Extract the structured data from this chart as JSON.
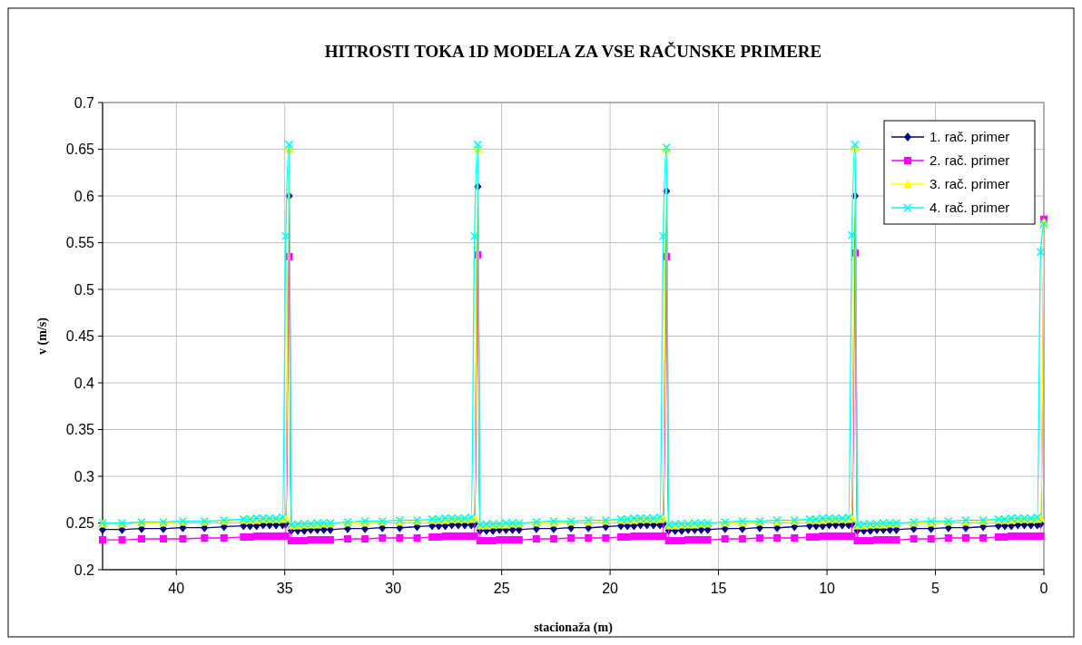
{
  "chart_data": {
    "type": "line",
    "title": "HITROSTI TOKA 1D MODELA ZA VSE RAČUNSKE PRIMERE",
    "xlabel": "stacionaža (m)",
    "ylabel": "v (m/s)",
    "x": [
      43.4,
      42.5,
      41.6,
      40.6,
      39.7,
      38.7,
      37.8,
      36.9,
      36.6,
      36.3,
      36.0,
      35.7,
      35.4,
      35.1,
      34.95,
      34.8,
      34.7,
      34.4,
      34.1,
      33.8,
      33.5,
      33.2,
      32.9,
      32.1,
      31.3,
      30.5,
      29.7,
      28.9,
      28.2,
      27.9,
      27.6,
      27.3,
      27.0,
      26.7,
      26.4,
      26.25,
      26.1,
      26.0,
      25.7,
      25.4,
      25.1,
      24.8,
      24.5,
      24.2,
      23.4,
      22.6,
      21.8,
      21.0,
      20.2,
      19.5,
      19.2,
      18.9,
      18.6,
      18.3,
      18.0,
      17.7,
      17.55,
      17.4,
      17.3,
      17.0,
      16.7,
      16.4,
      16.1,
      15.8,
      15.5,
      14.7,
      13.9,
      13.1,
      12.3,
      11.5,
      10.8,
      10.5,
      10.2,
      9.9,
      9.6,
      9.3,
      9.0,
      8.85,
      8.7,
      8.6,
      8.3,
      8.0,
      7.7,
      7.4,
      7.1,
      6.8,
      6.0,
      5.2,
      4.4,
      3.6,
      2.8,
      2.1,
      1.8,
      1.5,
      1.2,
      0.9,
      0.6,
      0.3,
      0.15,
      0
    ],
    "series": [
      {
        "name": "1. rač. primer",
        "color": "#000080",
        "marker": "diamond",
        "values": [
          0.243,
          0.243,
          0.244,
          0.244,
          0.245,
          0.245,
          0.246,
          0.247,
          0.247,
          0.247,
          0.248,
          0.248,
          0.248,
          0.248,
          0.249,
          0.6,
          0.242,
          0.242,
          0.242,
          0.243,
          0.243,
          0.243,
          0.243,
          0.244,
          0.244,
          0.245,
          0.245,
          0.246,
          0.247,
          0.247,
          0.247,
          0.248,
          0.248,
          0.248,
          0.248,
          0.249,
          0.61,
          0.242,
          0.242,
          0.242,
          0.243,
          0.243,
          0.243,
          0.243,
          0.244,
          0.244,
          0.245,
          0.245,
          0.246,
          0.247,
          0.247,
          0.247,
          0.248,
          0.248,
          0.248,
          0.248,
          0.249,
          0.605,
          0.242,
          0.242,
          0.242,
          0.243,
          0.243,
          0.243,
          0.243,
          0.244,
          0.244,
          0.245,
          0.245,
          0.246,
          0.247,
          0.247,
          0.247,
          0.248,
          0.248,
          0.248,
          0.248,
          0.249,
          0.6,
          0.242,
          0.242,
          0.242,
          0.243,
          0.243,
          0.243,
          0.243,
          0.244,
          0.244,
          0.245,
          0.245,
          0.246,
          0.247,
          0.247,
          0.247,
          0.248,
          0.248,
          0.248,
          0.248,
          0.249,
          null
        ]
      },
      {
        "name": "2. rač. primer",
        "color": "#ff00ff",
        "marker": "square",
        "values": [
          0.232,
          0.232,
          0.233,
          0.233,
          0.233,
          0.234,
          0.234,
          0.235,
          0.235,
          0.236,
          0.236,
          0.236,
          0.236,
          0.236,
          0.236,
          0.535,
          0.231,
          0.231,
          0.231,
          0.232,
          0.232,
          0.232,
          0.232,
          0.233,
          0.233,
          0.234,
          0.234,
          0.234,
          0.235,
          0.235,
          0.236,
          0.236,
          0.236,
          0.236,
          0.236,
          0.236,
          0.537,
          0.231,
          0.231,
          0.231,
          0.232,
          0.232,
          0.232,
          0.232,
          0.233,
          0.233,
          0.234,
          0.234,
          0.234,
          0.235,
          0.235,
          0.236,
          0.236,
          0.236,
          0.236,
          0.236,
          0.236,
          0.535,
          0.231,
          0.231,
          0.231,
          0.232,
          0.232,
          0.232,
          0.232,
          0.233,
          0.233,
          0.234,
          0.234,
          0.234,
          0.235,
          0.235,
          0.236,
          0.236,
          0.236,
          0.236,
          0.236,
          0.236,
          0.539,
          0.231,
          0.231,
          0.231,
          0.232,
          0.232,
          0.232,
          0.232,
          0.233,
          0.233,
          0.234,
          0.234,
          0.234,
          0.235,
          0.235,
          0.236,
          0.236,
          0.236,
          0.236,
          0.236,
          0.236,
          0.575
        ]
      },
      {
        "name": "3. rač. primer",
        "color": "#ffff00",
        "marker": "triangle",
        "values": [
          0.249,
          0.249,
          0.25,
          0.25,
          0.251,
          0.251,
          0.252,
          0.253,
          0.253,
          0.253,
          0.254,
          0.254,
          0.254,
          0.254,
          0.255,
          0.65,
          0.247,
          0.247,
          0.248,
          0.248,
          0.248,
          0.249,
          0.249,
          0.25,
          0.25,
          0.251,
          0.251,
          0.252,
          0.253,
          0.253,
          0.253,
          0.254,
          0.254,
          0.254,
          0.254,
          0.255,
          0.65,
          0.247,
          0.247,
          0.248,
          0.248,
          0.248,
          0.249,
          0.249,
          0.25,
          0.25,
          0.251,
          0.251,
          0.252,
          0.253,
          0.253,
          0.253,
          0.254,
          0.254,
          0.254,
          0.254,
          0.255,
          0.65,
          0.247,
          0.247,
          0.248,
          0.248,
          0.248,
          0.249,
          0.249,
          0.25,
          0.25,
          0.251,
          0.251,
          0.252,
          0.253,
          0.253,
          0.253,
          0.254,
          0.254,
          0.254,
          0.254,
          0.255,
          0.652,
          0.247,
          0.247,
          0.248,
          0.248,
          0.248,
          0.249,
          0.249,
          0.25,
          0.25,
          0.251,
          0.251,
          0.252,
          0.253,
          0.253,
          0.253,
          0.254,
          0.254,
          0.254,
          0.254,
          0.255,
          0.572
        ]
      },
      {
        "name": "4. rač. primer",
        "color": "#00ffff",
        "marker": "cross",
        "values": [
          0.25,
          0.25,
          0.251,
          0.251,
          0.252,
          0.252,
          0.253,
          0.254,
          0.254,
          0.255,
          0.255,
          0.255,
          0.255,
          0.256,
          0.557,
          0.655,
          0.248,
          0.249,
          0.249,
          0.249,
          0.25,
          0.25,
          0.25,
          0.251,
          0.252,
          0.252,
          0.253,
          0.253,
          0.254,
          0.254,
          0.255,
          0.255,
          0.255,
          0.255,
          0.256,
          0.557,
          0.655,
          0.248,
          0.249,
          0.249,
          0.249,
          0.25,
          0.25,
          0.25,
          0.251,
          0.252,
          0.252,
          0.253,
          0.253,
          0.254,
          0.254,
          0.255,
          0.255,
          0.255,
          0.255,
          0.256,
          0.557,
          0.652,
          0.248,
          0.249,
          0.249,
          0.249,
          0.25,
          0.25,
          0.25,
          0.251,
          0.252,
          0.252,
          0.253,
          0.253,
          0.254,
          0.254,
          0.255,
          0.255,
          0.255,
          0.255,
          0.256,
          0.558,
          0.655,
          0.248,
          0.249,
          0.249,
          0.249,
          0.25,
          0.25,
          0.25,
          0.251,
          0.252,
          0.252,
          0.253,
          0.253,
          0.254,
          0.254,
          0.255,
          0.255,
          0.255,
          0.255,
          0.256,
          0.54,
          0.57
        ]
      }
    ],
    "xlim": [
      43.4,
      0
    ],
    "xticks": [
      40,
      35,
      30,
      25,
      20,
      15,
      10,
      5,
      0
    ],
    "ylim": [
      0.2,
      0.7
    ],
    "yticks": [
      0.2,
      0.25,
      0.3,
      0.35,
      0.4,
      0.45,
      0.5,
      0.55,
      0.6,
      0.65,
      0.7
    ],
    "grid": true,
    "legend": "top right",
    "line_style": "solid"
  }
}
